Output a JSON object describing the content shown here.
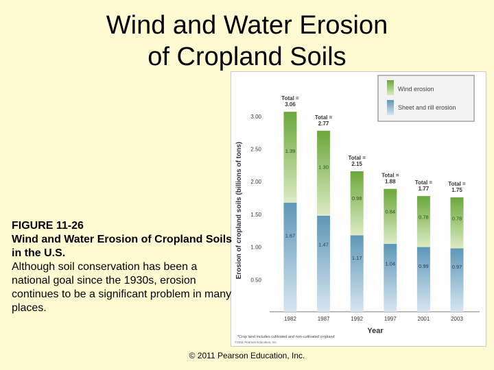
{
  "title": {
    "line1": "Wind and Water Erosion",
    "line2": "of Cropland Soils"
  },
  "caption": {
    "figure_label": "FIGURE 11-26",
    "figure_title": "Wind and Water Erosion of Cropland Soils in the U.S.",
    "text": "Although soil conservation has been a national goal since the 1930s, erosion continues to be a significant problem in many places."
  },
  "footer": {
    "copyright": "© 2011 Pearson Education, Inc."
  },
  "colors": {
    "background": "#fefbd2",
    "wind_top": "#6aa83a",
    "wind_bottom": "#dcebc4",
    "water_top": "#5e97b8",
    "water_bottom": "#d6e6f0"
  },
  "chart_data": {
    "type": "bar",
    "stacked": true,
    "categories": [
      "1982",
      "1987",
      "1992",
      "1997",
      "2001",
      "2003"
    ],
    "series": [
      {
        "name": "Sheet and rill erosion",
        "values": [
          1.67,
          1.47,
          1.17,
          1.04,
          0.99,
          0.97
        ],
        "labels": [
          "1.67",
          "1.47",
          "1.17",
          "1.04",
          "0.99",
          "0.97"
        ]
      },
      {
        "name": "Wind erosion",
        "values": [
          1.39,
          1.3,
          0.98,
          0.84,
          0.78,
          0.78
        ],
        "labels": [
          "1.39",
          "1.30",
          "0.98",
          "0.84",
          "0.78",
          "0.78"
        ]
      }
    ],
    "totals": [
      "Total = 3.06",
      "Total = 2.77",
      "Total = 2.15",
      "Total = 1.88",
      "Total = 1.77",
      "Total = 1.75"
    ],
    "xlabel": "Year",
    "ylabel": "Erosion of cropland soils (billions of tons)",
    "yticks": [
      "0.50",
      "1.00",
      "1.50",
      "2.00",
      "2.50",
      "3.00"
    ],
    "ylim": [
      0,
      3.25
    ],
    "legend": [
      {
        "label": "Wind erosion"
      },
      {
        "label": "Sheet and rill erosion"
      }
    ],
    "legend_position": "top-right",
    "footnote": "*Crop land includes cultivated and non-cultivated cropland",
    "credit": "©2011 Pearson Education, Inc."
  }
}
